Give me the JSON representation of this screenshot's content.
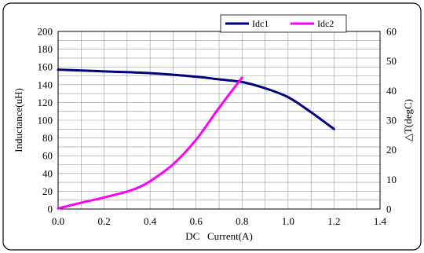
{
  "chart_data": {
    "type": "line",
    "xlabel": "DC   Current(A)",
    "ylabel_left": "Inductance(uH)",
    "ylabel_right": "△T(degC)",
    "xlim": [
      0,
      1.4
    ],
    "ylim_left": [
      0,
      200
    ],
    "ylim_right": [
      0,
      60
    ],
    "x_ticks": [
      "0.0",
      "0.2",
      "0.4",
      "0.6",
      "0.8",
      "1.0",
      "1.2",
      "1.4"
    ],
    "y_left_ticks": [
      "0",
      "20",
      "40",
      "60",
      "80",
      "100",
      "120",
      "140",
      "160",
      "180",
      "200"
    ],
    "y_right_ticks": [
      "0",
      "10",
      "20",
      "30",
      "40",
      "50",
      "60"
    ],
    "grid": true,
    "legend_position": "top-right",
    "series": [
      {
        "name": "Idc1",
        "axis": "left",
        "color": "#000080",
        "x": [
          0.0,
          0.2,
          0.4,
          0.6,
          0.7,
          0.8,
          0.9,
          1.0,
          1.1,
          1.2
        ],
        "y": [
          157,
          155,
          153,
          149,
          146,
          143,
          136,
          126,
          109,
          90
        ]
      },
      {
        "name": "Idc2",
        "axis": "right",
        "color": "#FF00FF",
        "x": [
          0.0,
          0.1,
          0.2,
          0.3,
          0.35,
          0.4,
          0.5,
          0.6,
          0.7,
          0.8
        ],
        "y": [
          0.2,
          2.1,
          3.9,
          5.9,
          7.3,
          9.4,
          15.1,
          23.4,
          34.2,
          44.4
        ]
      }
    ]
  }
}
